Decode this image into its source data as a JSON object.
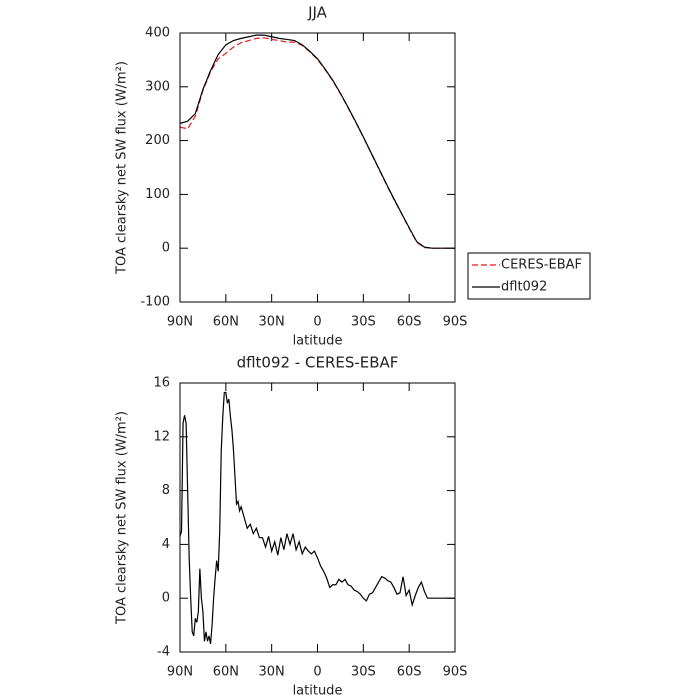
{
  "chart_data": [
    {
      "type": "line",
      "title": "JJA",
      "xlabel": "latitude",
      "ylabel": "TOA clearsky net SW flux (W/m²)",
      "x": [
        90,
        85,
        80,
        75,
        70,
        65,
        60,
        55,
        50,
        45,
        40,
        35,
        30,
        25,
        20,
        15,
        10,
        5,
        0,
        -5,
        -10,
        -15,
        -20,
        -25,
        -30,
        -35,
        -40,
        -45,
        -50,
        -55,
        -60,
        -65,
        -70,
        -75,
        -80,
        -85,
        -90
      ],
      "series": [
        {
          "name": "CERES-EBAF",
          "color": "#e41a1c",
          "dash": true,
          "values": [
            225,
            222,
            245,
            293,
            328,
            352,
            362,
            374,
            382,
            386,
            390,
            391,
            388,
            386,
            383,
            383,
            377,
            365,
            351,
            332,
            311,
            287,
            261,
            234,
            206,
            177,
            148,
            119,
            91,
            64,
            37,
            11,
            1,
            0,
            0,
            0,
            0
          ]
        },
        {
          "name": "dflt092",
          "color": "#000000",
          "dash": false,
          "values": [
            232,
            236,
            250,
            295,
            330,
            360,
            378,
            386,
            390,
            393,
            396,
            396,
            393,
            390,
            388,
            386,
            378,
            366,
            352,
            333,
            312,
            288,
            262,
            235,
            207,
            178,
            149,
            120,
            92,
            65,
            38,
            12,
            2,
            0,
            0,
            0,
            0
          ]
        }
      ],
      "xlim": [
        90,
        -90
      ],
      "xticks": [
        {
          "value": 90,
          "label": "90N"
        },
        {
          "value": 60,
          "label": "60N"
        },
        {
          "value": 30,
          "label": "30N"
        },
        0,
        {
          "value": -30,
          "label": "30S"
        },
        {
          "value": -60,
          "label": "60S"
        },
        {
          "value": -90,
          "label": "90S"
        }
      ],
      "ylim": [
        -100,
        400
      ],
      "yticks": [
        -100,
        0,
        100,
        200,
        300,
        400
      ],
      "legend": "outside right"
    },
    {
      "type": "line",
      "title": "dflt092 - CERES-EBAF",
      "xlabel": "latitude",
      "ylabel": "TOA clearsky net SW flux (W/m²)",
      "x": [
        90,
        89,
        88,
        87,
        86,
        85,
        84,
        83,
        82,
        81,
        80,
        79,
        78,
        77,
        76,
        75,
        74,
        73,
        72,
        71,
        70,
        69,
        68,
        67,
        66,
        65,
        64,
        63,
        62,
        61,
        60,
        59,
        58,
        57,
        56,
        55,
        54,
        53,
        52,
        51,
        50,
        48,
        46,
        44,
        42,
        40,
        38,
        36,
        34,
        32,
        30,
        28,
        26,
        24,
        22,
        20,
        18,
        16,
        14,
        12,
        10,
        8,
        6,
        4,
        2,
        0,
        -2,
        -4,
        -6,
        -8,
        -10,
        -12,
        -14,
        -16,
        -18,
        -20,
        -22,
        -24,
        -26,
        -28,
        -30,
        -32,
        -34,
        -36,
        -38,
        -40,
        -42,
        -44,
        -46,
        -48,
        -50,
        -52,
        -54,
        -56,
        -58,
        -60,
        -62,
        -64,
        -66,
        -68,
        -70,
        -72,
        -76,
        -80,
        -90
      ],
      "values": [
        4.6,
        5,
        13,
        13.6,
        13,
        8,
        3,
        0,
        -2.5,
        -2.8,
        -1.5,
        -1.8,
        -1,
        2.2,
        0,
        -1,
        -3.2,
        -2.5,
        -3.2,
        -2.8,
        -3.4,
        -2,
        0,
        1.5,
        2.8,
        2,
        5,
        11,
        13.5,
        15.3,
        15.3,
        14.5,
        14.8,
        13.5,
        12.5,
        11,
        9,
        7,
        7.2,
        6.5,
        6.8,
        6,
        5.2,
        5.5,
        4.8,
        5.2,
        4.5,
        4.5,
        3.8,
        4.6,
        3.5,
        4.2,
        3.2,
        4.5,
        3.6,
        4.8,
        4,
        4.8,
        3.6,
        4.2,
        3.3,
        3.8,
        3.5,
        3.3,
        3.5,
        3,
        2.4,
        2,
        1.5,
        0.8,
        1,
        1,
        1.4,
        1.2,
        1.4,
        1,
        0.9,
        0.6,
        0.5,
        0.3,
        0,
        -0.2,
        0.3,
        0.4,
        0.8,
        1.2,
        1.6,
        1.5,
        1.3,
        1.2,
        0.8,
        0.3,
        0.4,
        1.6,
        0.2,
        0.6,
        -0.5,
        0.2,
        0.8,
        1.2,
        0.5,
        0,
        0,
        0,
        0
      ],
      "color": "#000000",
      "xlim": [
        90,
        -90
      ],
      "xticks": [
        {
          "value": 90,
          "label": "90N"
        },
        {
          "value": 60,
          "label": "60N"
        },
        {
          "value": 30,
          "label": "30N"
        },
        0,
        {
          "value": -30,
          "label": "30S"
        },
        {
          "value": -60,
          "label": "60S"
        },
        {
          "value": -90,
          "label": "90S"
        }
      ],
      "ylim": [
        -4,
        16
      ],
      "yticks": [
        -4,
        0,
        4,
        8,
        12,
        16
      ]
    }
  ]
}
